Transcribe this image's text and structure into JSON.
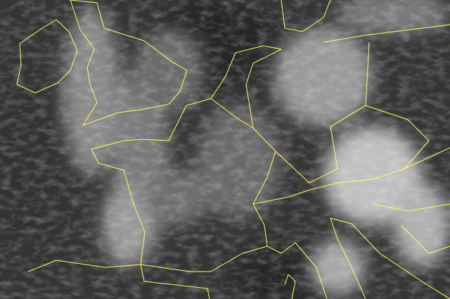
{
  "map": {
    "type": "satellite-infrared",
    "colors": {
      "background": "#353535",
      "sea": "#2a2a2a",
      "cloud": "#d8d8d8",
      "border": "#ffff66"
    }
  }
}
